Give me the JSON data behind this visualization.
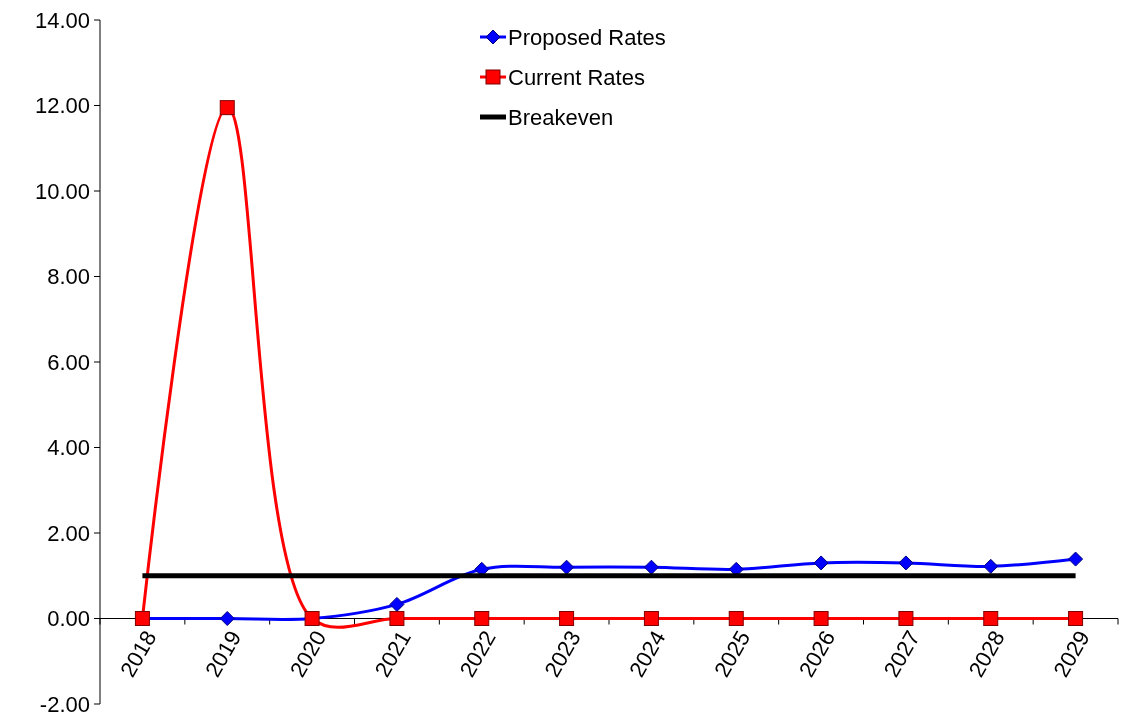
{
  "chart_data": {
    "type": "line",
    "categories": [
      "2018",
      "2019",
      "2020",
      "2021",
      "2022",
      "2023",
      "2024",
      "2025",
      "2026",
      "2027",
      "2028",
      "2029"
    ],
    "series": [
      {
        "name": "Proposed Rates",
        "color": "#0000ff",
        "marker": "diamond",
        "values": [
          0,
          0,
          0,
          0.33,
          1.15,
          1.2,
          1.2,
          1.15,
          1.3,
          1.3,
          1.22,
          1.39
        ]
      },
      {
        "name": "Current Rates",
        "color": "#ff0000",
        "marker": "square",
        "values": [
          0,
          11.95,
          0,
          0,
          0,
          0,
          0,
          0,
          0,
          0,
          0,
          0
        ]
      },
      {
        "name": "Breakeven",
        "color": "#000000",
        "marker": "none",
        "values": [
          1,
          1,
          1,
          1,
          1,
          1,
          1,
          1,
          1,
          1,
          1,
          1
        ]
      }
    ],
    "ylim": [
      -2,
      14
    ],
    "yticks": [
      {
        "value": -2,
        "label": "-2.00"
      },
      {
        "value": 0,
        "label": "0.00"
      },
      {
        "value": 2,
        "label": "2.00"
      },
      {
        "value": 4,
        "label": "4.00"
      },
      {
        "value": 6,
        "label": "6.00"
      },
      {
        "value": 8,
        "label": "8.00"
      },
      {
        "value": 10,
        "label": "10.00"
      },
      {
        "value": 12,
        "label": "12.00"
      },
      {
        "value": 14,
        "label": "14.00"
      }
    ],
    "grid": false,
    "legend": "top"
  }
}
